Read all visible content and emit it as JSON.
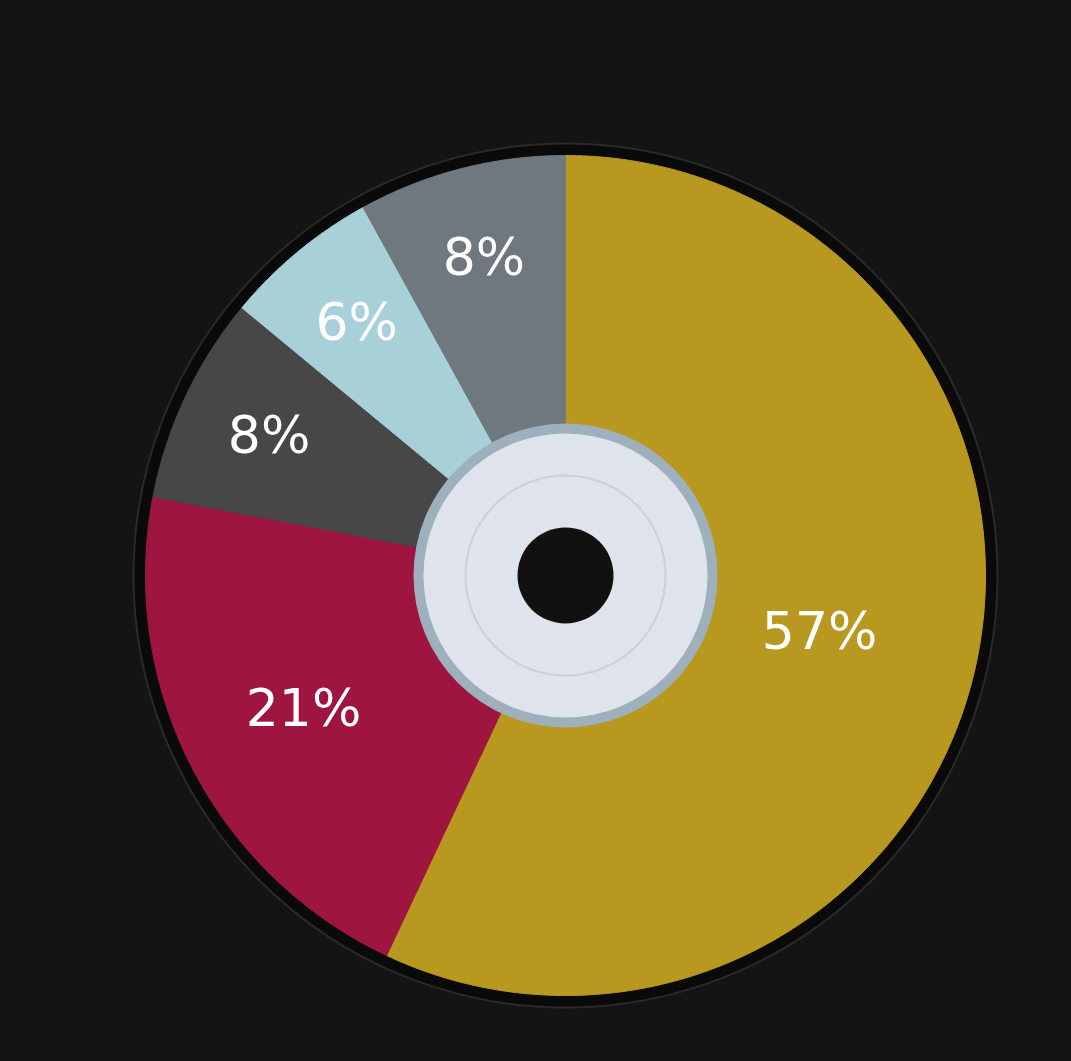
{
  "chart_data": {
    "type": "pie",
    "values": [
      57,
      21,
      8,
      6,
      8
    ],
    "value_labels": [
      "57%",
      "21%",
      "8%",
      "6%",
      "8%"
    ],
    "colors": [
      "#b8981f",
      "#9e1640",
      "#474747",
      "#a8d0d8",
      "#6f787e"
    ],
    "data_labels": true
  }
}
